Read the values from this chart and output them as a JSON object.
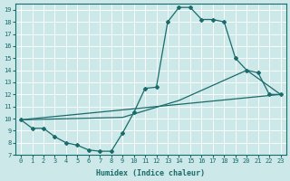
{
  "bg_color": "#cce8e8",
  "line_color": "#1a6b6b",
  "xlabel": "Humidex (Indice chaleur)",
  "xlim": [
    -0.5,
    23.5
  ],
  "ylim": [
    7,
    19.5
  ],
  "xticks": [
    0,
    1,
    2,
    3,
    4,
    5,
    6,
    7,
    8,
    9,
    10,
    11,
    12,
    13,
    14,
    15,
    16,
    17,
    18,
    19,
    20,
    21,
    22,
    23
  ],
  "yticks": [
    7,
    8,
    9,
    10,
    11,
    12,
    13,
    14,
    15,
    16,
    17,
    18,
    19
  ],
  "main_x": [
    0,
    1,
    2,
    3,
    4,
    5,
    6,
    7,
    8,
    9,
    10,
    11,
    12,
    13,
    14,
    15,
    16,
    17,
    18,
    19,
    20,
    21,
    22,
    23
  ],
  "main_y": [
    9.9,
    9.2,
    9.2,
    8.5,
    8.0,
    7.8,
    7.4,
    7.3,
    7.3,
    8.8,
    10.5,
    12.5,
    12.6,
    18.0,
    19.2,
    19.2,
    18.2,
    18.2,
    18.0,
    15.0,
    14.0,
    13.8,
    12.0,
    12.0
  ],
  "line2_x": [
    0,
    23
  ],
  "line2_y": [
    9.9,
    12.0
  ],
  "line3_x": [
    0,
    9,
    14,
    20,
    23
  ],
  "line3_y": [
    9.9,
    10.1,
    11.5,
    14.0,
    12.0
  ]
}
